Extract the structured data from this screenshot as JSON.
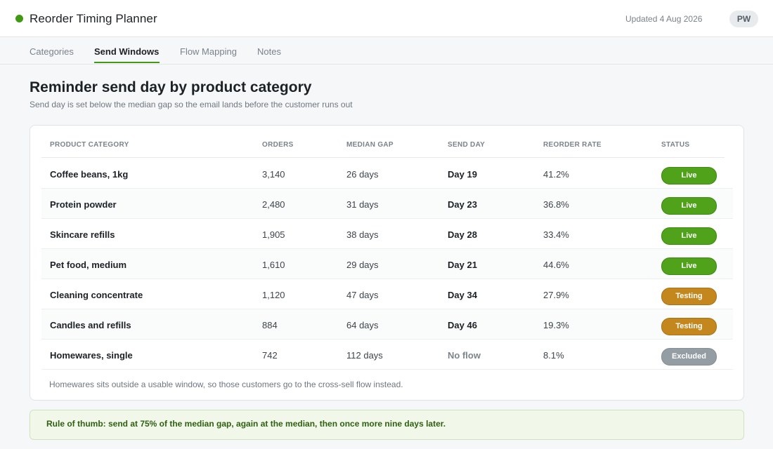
{
  "header": {
    "title": "Reorder Timing Planner",
    "updated": "Updated 4 Aug 2026",
    "avatar_initials": "PW",
    "accent_color": "#3f9a12"
  },
  "tabs": [
    {
      "label": "Categories"
    },
    {
      "label": "Send Windows",
      "active": true
    },
    {
      "label": "Flow Mapping"
    },
    {
      "label": "Notes"
    }
  ],
  "main": {
    "title": "Reminder send day by product category",
    "subtitle": "Send day is set below the median gap so the email lands before the customer runs out"
  },
  "table": {
    "columns": [
      "PRODUCT CATEGORY",
      "ORDERS",
      "MEDIAN GAP",
      "SEND DAY",
      "REORDER RATE",
      "STATUS"
    ],
    "rows": [
      {
        "category": "Coffee beans, 1kg",
        "orders": "3,140",
        "median_gap": "26 days",
        "send_day": "Day 19",
        "reorder_rate": "41.2%",
        "status": "Live"
      },
      {
        "category": "Protein powder",
        "orders": "2,480",
        "median_gap": "31 days",
        "send_day": "Day 23",
        "reorder_rate": "36.8%",
        "status": "Live"
      },
      {
        "category": "Skincare refills",
        "orders": "1,905",
        "median_gap": "38 days",
        "send_day": "Day 28",
        "reorder_rate": "33.4%",
        "status": "Live"
      },
      {
        "category": "Pet food, medium",
        "orders": "1,610",
        "median_gap": "29 days",
        "send_day": "Day 21",
        "reorder_rate": "44.6%",
        "status": "Live"
      },
      {
        "category": "Cleaning concentrate",
        "orders": "1,120",
        "median_gap": "47 days",
        "send_day": "Day 34",
        "reorder_rate": "27.9%",
        "status": "Testing"
      },
      {
        "category": "Candles and refills",
        "orders": "884",
        "median_gap": "64 days",
        "send_day": "Day 46",
        "reorder_rate": "19.3%",
        "status": "Testing"
      },
      {
        "category": "Homewares, single",
        "orders": "742",
        "median_gap": "112 days",
        "send_day": "No flow",
        "reorder_rate": "8.1%",
        "status": "Excluded"
      }
    ],
    "note": "Homewares sits outside a usable window, so those customers go to the cross-sell flow instead.",
    "status_colors": {
      "Live": "#4fa21a",
      "Testing": "#c4871e",
      "Excluded": "#949ca4"
    }
  },
  "tip": {
    "text": "Rule of thumb: send at 75% of the median gap, again at the median, then once more nine days later."
  }
}
